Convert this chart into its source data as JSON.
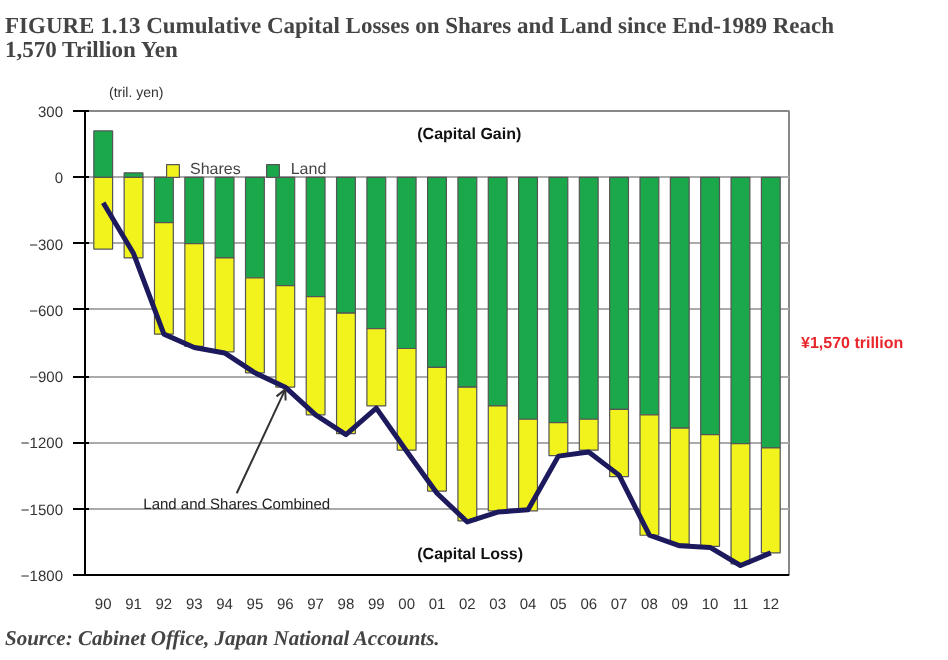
{
  "chart_data": {
    "type": "bar",
    "stacked": true,
    "title": "FIGURE 1.13  Cumulative Capital Losses on Shares and Land since End-1989 Reach 1,570 Trillion Yen",
    "ylabel": "(tril. yen)",
    "categories": [
      "90",
      "91",
      "92",
      "93",
      "94",
      "95",
      "96",
      "97",
      "98",
      "99",
      "00",
      "01",
      "02",
      "03",
      "04",
      "05",
      "06",
      "07",
      "08",
      "09",
      "10",
      "11",
      "12"
    ],
    "series": [
      {
        "name": "Land",
        "color": "#1aa84a",
        "values": [
          210,
          20,
          -205,
          -300,
          -365,
          -455,
          -490,
          -540,
          -615,
          -685,
          -775,
          -860,
          -950,
          -1035,
          -1095,
          -1110,
          -1095,
          -1050,
          -1075,
          -1135,
          -1165,
          -1205,
          -1225
        ]
      },
      {
        "name": "Shares",
        "color": "#f2f21c",
        "values": [
          -325,
          -365,
          -505,
          -465,
          -425,
          -430,
          -460,
          -535,
          -545,
          -350,
          -460,
          -560,
          -605,
          -475,
          -415,
          -150,
          -140,
          -305,
          -545,
          -525,
          -505,
          -545,
          -475
        ]
      },
      {
        "type": "line",
        "color": "#1c1a5c",
        "values": [
          -115,
          -345,
          -710,
          -770,
          -795,
          -885,
          -950,
          -1075,
          -1165,
          -1045,
          -1240,
          -1430,
          -1560,
          -1515,
          -1505,
          -1262,
          -1243,
          -1348,
          -1620,
          -1668,
          -1675,
          -1757,
          -1700
        ]
      }
    ],
    "ylim": [
      -1800,
      300
    ],
    "yticks": [
      300,
      0,
      -300,
      -600,
      -900,
      -1200,
      -1500,
      -1800
    ],
    "grid": "y",
    "legend": "top left",
    "annotations": [
      {
        "text": "Land and Shares Combined",
        "x": "96",
        "y": -950
      },
      "(Capital Gain)",
      "(Capital Loss)",
      "¥1,570 trillion",
      "Source: Cabinet Office, Japan National Accounts."
    ]
  }
}
